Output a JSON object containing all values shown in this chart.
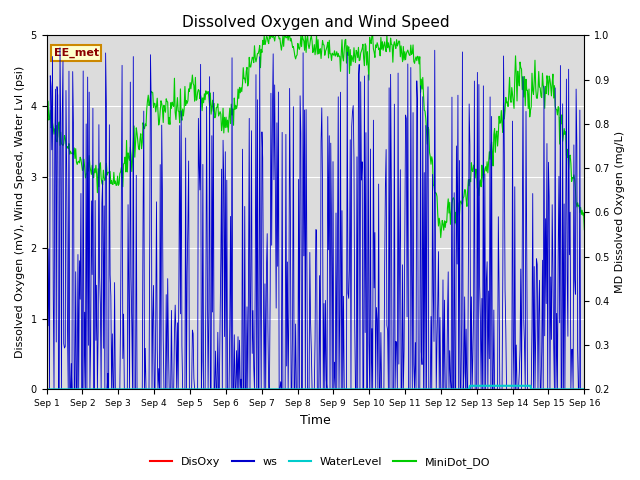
{
  "title": "Dissolved Oxygen and Wind Speed",
  "xlabel": "Time",
  "ylabel_left": "Dissolved Oxygen (mV), Wind Speed, Water Lvl (psi)",
  "ylabel_right": "MD Dissolved Oxygen (mg/L)",
  "ylim_left": [
    0.0,
    5.0
  ],
  "ylim_right": [
    0.2,
    1.0
  ],
  "xtick_labels": [
    "Sep 1",
    "Sep 2",
    "Sep 3",
    "Sep 4",
    "Sep 5",
    "Sep 6",
    "Sep 7",
    "Sep 8",
    "Sep 9",
    "Sep 10",
    "Sep 11",
    "Sep 12",
    "Sep 13",
    "Sep 14",
    "Sep 15",
    "Sep 16"
  ],
  "annotation_text": "EE_met",
  "annotation_color": "#8B0000",
  "annotation_bg": "#FFFFCC",
  "annotation_border": "#CC8800",
  "bg_color": "#DCDCDC",
  "colors": {
    "DisOxy": "#FF0000",
    "ws": "#0000CC",
    "WaterLevel": "#00CCCC",
    "MiniDot_DO": "#00CC00"
  },
  "title_fontsize": 11,
  "axis_fontsize": 8,
  "tick_fontsize": 7
}
